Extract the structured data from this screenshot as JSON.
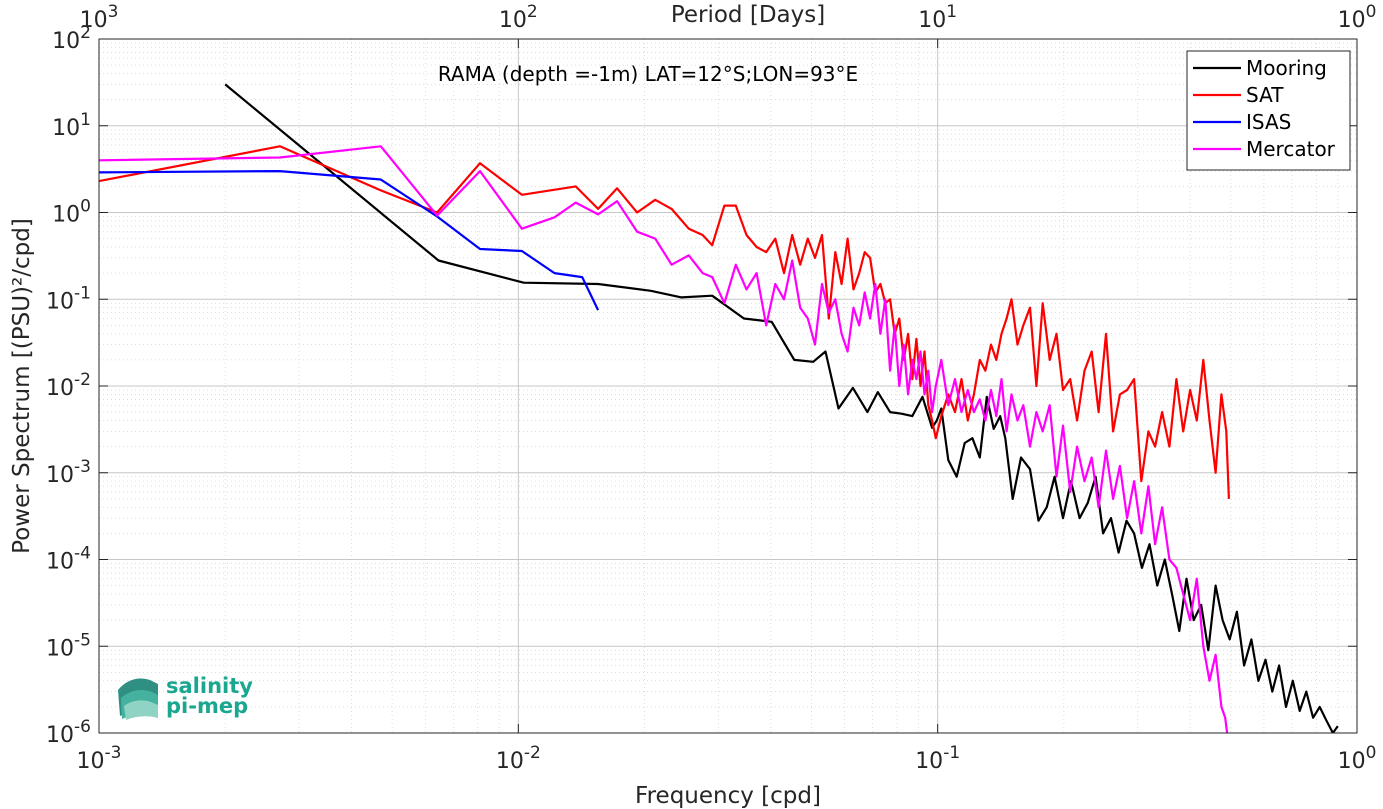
{
  "chart_data": {
    "type": "line",
    "annotation": "RAMA (depth =-1m) LAT=12°S;LON=93°E",
    "xlabel": "Frequency [cpd]",
    "ylabel": "Power Spectrum [(PSU)²/cpd]",
    "top_axis_label": "Period [Days]",
    "x_scale": "log",
    "y_scale": "log",
    "xlim": [
      0.001,
      1
    ],
    "ylim": [
      1e-06,
      100
    ],
    "grid": true,
    "legend_position": "top-right",
    "x_ticks": [
      {
        "value": 0.001,
        "base": "10",
        "exp": "-3"
      },
      {
        "value": 0.01,
        "base": "10",
        "exp": "-2"
      },
      {
        "value": 0.1,
        "base": "10",
        "exp": "-1"
      },
      {
        "value": 1,
        "base": "10",
        "exp": "0"
      }
    ],
    "top_ticks": [
      {
        "value": 0.001,
        "base": "10",
        "exp": "3"
      },
      {
        "value": 0.01,
        "base": "10",
        "exp": "2"
      },
      {
        "value": 0.1,
        "base": "10",
        "exp": "1"
      },
      {
        "value": 1,
        "base": "10",
        "exp": "0"
      }
    ],
    "y_ticks": [
      {
        "value": 1e-06,
        "base": "10",
        "exp": "-6"
      },
      {
        "value": 1e-05,
        "base": "10",
        "exp": "-5"
      },
      {
        "value": 0.0001,
        "base": "10",
        "exp": "-4"
      },
      {
        "value": 0.001,
        "base": "10",
        "exp": "-3"
      },
      {
        "value": 0.01,
        "base": "10",
        "exp": "-2"
      },
      {
        "value": 0.1,
        "base": "10",
        "exp": "-1"
      },
      {
        "value": 1,
        "base": "10",
        "exp": "0"
      },
      {
        "value": 10,
        "base": "10",
        "exp": "1"
      },
      {
        "value": 100,
        "base": "10",
        "exp": "2"
      }
    ],
    "series": [
      {
        "name": "Mooring",
        "color": "#000000",
        "x": [
          0.002,
          0.00645,
          0.0103,
          0.0155,
          0.0207,
          0.0245,
          0.029,
          0.0345,
          0.0402,
          0.0455,
          0.0505,
          0.054,
          0.058,
          0.0628,
          0.068,
          0.072,
          0.077,
          0.082,
          0.087,
          0.092,
          0.097,
          0.0995,
          0.102,
          0.106,
          0.111,
          0.116,
          0.121,
          0.126,
          0.131,
          0.136,
          0.141,
          0.145,
          0.151,
          0.158,
          0.166,
          0.174,
          0.182,
          0.19,
          0.199,
          0.208,
          0.218,
          0.228,
          0.238,
          0.248,
          0.259,
          0.27,
          0.282,
          0.294,
          0.307,
          0.32,
          0.334,
          0.348,
          0.362,
          0.377,
          0.392,
          0.408,
          0.425,
          0.442,
          0.46,
          0.478,
          0.497,
          0.517,
          0.538,
          0.56,
          0.582,
          0.605,
          0.628,
          0.652,
          0.677,
          0.703,
          0.73,
          0.757,
          0.786,
          0.815,
          0.845,
          0.876,
          0.9
        ],
        "y": [
          30,
          0.28,
          0.155,
          0.15,
          0.125,
          0.105,
          0.11,
          0.06,
          0.055,
          0.02,
          0.019,
          0.025,
          0.0055,
          0.0095,
          0.005,
          0.0085,
          0.005,
          0.0048,
          0.0045,
          0.0075,
          0.0033,
          0.004,
          0.0055,
          0.0014,
          0.0009,
          0.0022,
          0.0025,
          0.0015,
          0.0075,
          0.0032,
          0.0045,
          0.0025,
          0.0005,
          0.0015,
          0.0011,
          0.00028,
          0.0004,
          0.0009,
          0.0003,
          0.0008,
          0.0003,
          0.00045,
          0.0009,
          0.0002,
          0.0003,
          0.00012,
          0.00028,
          0.0002,
          8e-05,
          0.00015,
          5e-05,
          0.0001,
          4e-05,
          1.5e-05,
          6e-05,
          2e-05,
          3e-05,
          9e-06,
          5e-05,
          2e-05,
          1.2e-05,
          2.5e-05,
          6e-06,
          1.2e-05,
          4e-06,
          7e-06,
          3e-06,
          6e-06,
          2e-06,
          4e-06,
          1.8e-06,
          3e-06,
          1.5e-06,
          2e-06,
          1.4e-06,
          1e-06,
          1.2e-06
        ]
      },
      {
        "name": "SAT",
        "color": "#ff0000",
        "x": [
          0.001,
          0.0027,
          0.0047,
          0.0064,
          0.0081,
          0.0102,
          0.0137,
          0.0155,
          0.0172,
          0.0192,
          0.0212,
          0.0232,
          0.0255,
          0.0275,
          0.029,
          0.031,
          0.033,
          0.035,
          0.037,
          0.039,
          0.041,
          0.043,
          0.045,
          0.047,
          0.049,
          0.051,
          0.053,
          0.055,
          0.057,
          0.059,
          0.061,
          0.063,
          0.065,
          0.067,
          0.069,
          0.071,
          0.073,
          0.075,
          0.077,
          0.079,
          0.081,
          0.083,
          0.085,
          0.087,
          0.089,
          0.091,
          0.093,
          0.095,
          0.097,
          0.099,
          0.102,
          0.106,
          0.11,
          0.114,
          0.118,
          0.122,
          0.126,
          0.13,
          0.134,
          0.138,
          0.142,
          0.146,
          0.15,
          0.155,
          0.16,
          0.166,
          0.172,
          0.178,
          0.185,
          0.192,
          0.199,
          0.207,
          0.215,
          0.224,
          0.233,
          0.242,
          0.252,
          0.262,
          0.272,
          0.283,
          0.294,
          0.306,
          0.318,
          0.33,
          0.343,
          0.357,
          0.371,
          0.385,
          0.4,
          0.415,
          0.43,
          0.445,
          0.46,
          0.475,
          0.488,
          0.495
        ],
        "y": [
          2.3,
          5.8,
          1.8,
          1.0,
          3.7,
          1.6,
          2.0,
          1.1,
          1.9,
          1.0,
          1.4,
          1.1,
          0.65,
          0.55,
          0.42,
          1.2,
          1.2,
          0.55,
          0.4,
          0.35,
          0.5,
          0.2,
          0.55,
          0.25,
          0.5,
          0.3,
          0.55,
          0.06,
          0.35,
          0.15,
          0.5,
          0.13,
          0.2,
          0.35,
          0.3,
          0.12,
          0.15,
          0.09,
          0.1,
          0.04,
          0.06,
          0.02,
          0.04,
          0.012,
          0.035,
          0.01,
          0.025,
          0.006,
          0.004,
          0.0025,
          0.0045,
          0.008,
          0.005,
          0.012,
          0.004,
          0.008,
          0.02,
          0.015,
          0.03,
          0.02,
          0.04,
          0.06,
          0.1,
          0.03,
          0.05,
          0.08,
          0.01,
          0.09,
          0.02,
          0.04,
          0.009,
          0.012,
          0.004,
          0.015,
          0.025,
          0.005,
          0.04,
          0.003,
          0.008,
          0.009,
          0.012,
          0.0008,
          0.003,
          0.002,
          0.005,
          0.002,
          0.012,
          0.003,
          0.009,
          0.004,
          0.02,
          0.004,
          0.001,
          0.008,
          0.003,
          0.0005
        ]
      },
      {
        "name": "ISAS",
        "color": "#0000ff",
        "x": [
          0.001,
          0.0027,
          0.0047,
          0.0064,
          0.0081,
          0.0102,
          0.0122,
          0.0142,
          0.0155
        ],
        "y": [
          2.9,
          3.0,
          2.4,
          0.9,
          0.38,
          0.36,
          0.2,
          0.18,
          0.075
        ]
      },
      {
        "name": "Mercator",
        "color": "#ff00ff",
        "x": [
          0.001,
          0.0027,
          0.0047,
          0.0064,
          0.0081,
          0.0102,
          0.0122,
          0.0137,
          0.0155,
          0.0172,
          0.0192,
          0.0212,
          0.0232,
          0.0255,
          0.0275,
          0.029,
          0.031,
          0.033,
          0.035,
          0.037,
          0.039,
          0.041,
          0.043,
          0.045,
          0.047,
          0.049,
          0.051,
          0.053,
          0.055,
          0.057,
          0.059,
          0.061,
          0.063,
          0.065,
          0.067,
          0.069,
          0.071,
          0.073,
          0.075,
          0.077,
          0.079,
          0.081,
          0.083,
          0.085,
          0.087,
          0.089,
          0.091,
          0.093,
          0.095,
          0.097,
          0.099,
          0.102,
          0.106,
          0.11,
          0.114,
          0.118,
          0.122,
          0.126,
          0.13,
          0.134,
          0.138,
          0.142,
          0.146,
          0.15,
          0.155,
          0.16,
          0.166,
          0.172,
          0.178,
          0.185,
          0.192,
          0.199,
          0.207,
          0.215,
          0.224,
          0.233,
          0.242,
          0.252,
          0.262,
          0.272,
          0.283,
          0.294,
          0.306,
          0.318,
          0.33,
          0.343,
          0.357,
          0.371,
          0.385,
          0.4,
          0.415,
          0.43,
          0.445,
          0.46,
          0.475,
          0.485,
          0.49
        ],
        "y": [
          4.0,
          4.3,
          5.8,
          0.92,
          3.0,
          0.65,
          0.88,
          1.3,
          0.95,
          1.35,
          0.6,
          0.5,
          0.25,
          0.32,
          0.2,
          0.18,
          0.09,
          0.25,
          0.13,
          0.2,
          0.05,
          0.15,
          0.1,
          0.28,
          0.08,
          0.06,
          0.03,
          0.15,
          0.07,
          0.1,
          0.04,
          0.025,
          0.08,
          0.05,
          0.12,
          0.06,
          0.15,
          0.04,
          0.1,
          0.015,
          0.05,
          0.01,
          0.03,
          0.008,
          0.02,
          0.012,
          0.025,
          0.008,
          0.015,
          0.005,
          0.01,
          0.02,
          0.006,
          0.012,
          0.005,
          0.009,
          0.005,
          0.007,
          0.004,
          0.009,
          0.0045,
          0.012,
          0.003,
          0.008,
          0.004,
          0.006,
          0.002,
          0.005,
          0.003,
          0.006,
          0.0009,
          0.0035,
          0.0006,
          0.002,
          0.0008,
          0.0015,
          0.0004,
          0.0018,
          0.0005,
          0.0012,
          0.0003,
          0.0008,
          0.0002,
          0.0007,
          0.00015,
          0.0004,
          0.0001,
          8e-05,
          4e-05,
          2e-05,
          6e-05,
          1e-05,
          4e-06,
          8e-06,
          2e-06,
          1.5e-06,
          1e-06
        ]
      }
    ]
  },
  "logo": {
    "line1": "salinity",
    "line2": "pi-mep"
  }
}
